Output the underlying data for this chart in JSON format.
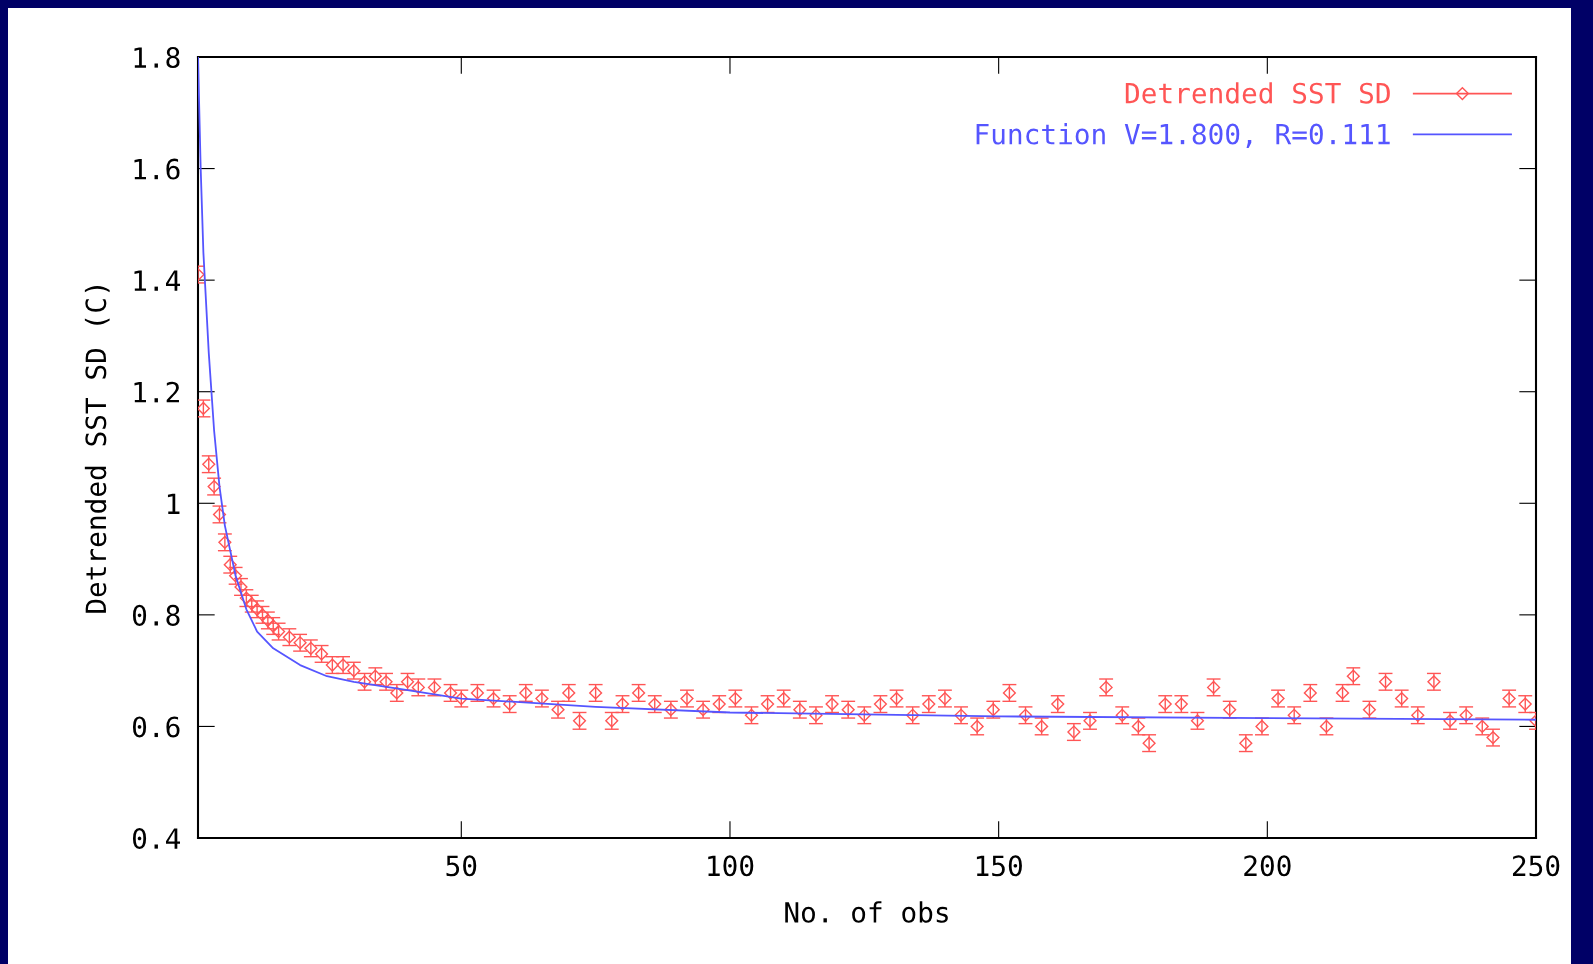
{
  "chart_data": {
    "type": "scatter",
    "xlabel": "No. of obs",
    "ylabel": "Detrended SST SD (C)",
    "xlim": [
      1,
      250
    ],
    "ylim": [
      0.4,
      1.8
    ],
    "xticks": [
      50,
      100,
      150,
      200,
      250
    ],
    "yticks": [
      0.4,
      0.6,
      0.8,
      1,
      1.2,
      1.4,
      1.6,
      1.8
    ],
    "grid": false,
    "legend": "top right",
    "series": [
      {
        "name": "Detrended SST SD",
        "marker": "diamond",
        "color": "#ff5555",
        "x": [
          1,
          2,
          3,
          4,
          5,
          6,
          7,
          8,
          9,
          10,
          11,
          12,
          13,
          14,
          15,
          16,
          18,
          20,
          22,
          24,
          26,
          28,
          30,
          32,
          34,
          36,
          38,
          40,
          42,
          45,
          48,
          50,
          53,
          56,
          59,
          62,
          65,
          68,
          70,
          72,
          75,
          78,
          80,
          83,
          86,
          89,
          92,
          95,
          98,
          101,
          104,
          107,
          110,
          113,
          116,
          119,
          122,
          125,
          128,
          131,
          134,
          137,
          140,
          143,
          146,
          149,
          152,
          155,
          158,
          161,
          164,
          167,
          170,
          173,
          176,
          178,
          181,
          184,
          187,
          190,
          193,
          196,
          199,
          202,
          205,
          208,
          211,
          214,
          216,
          219,
          222,
          225,
          228,
          231,
          234,
          237,
          240,
          242,
          245,
          248,
          250
        ],
        "values": [
          1.41,
          1.17,
          1.07,
          1.03,
          0.98,
          0.93,
          0.89,
          0.87,
          0.85,
          0.83,
          0.82,
          0.81,
          0.8,
          0.79,
          0.78,
          0.77,
          0.76,
          0.75,
          0.74,
          0.73,
          0.71,
          0.71,
          0.7,
          0.68,
          0.69,
          0.68,
          0.66,
          0.68,
          0.67,
          0.67,
          0.66,
          0.65,
          0.66,
          0.65,
          0.64,
          0.66,
          0.65,
          0.63,
          0.66,
          0.61,
          0.66,
          0.61,
          0.64,
          0.66,
          0.64,
          0.63,
          0.65,
          0.63,
          0.64,
          0.65,
          0.62,
          0.64,
          0.65,
          0.63,
          0.62,
          0.64,
          0.63,
          0.62,
          0.64,
          0.65,
          0.62,
          0.64,
          0.65,
          0.62,
          0.6,
          0.63,
          0.66,
          0.62,
          0.6,
          0.64,
          0.59,
          0.61,
          0.67,
          0.62,
          0.6,
          0.57,
          0.64,
          0.64,
          0.61,
          0.67,
          0.63,
          0.57,
          0.6,
          0.65,
          0.62,
          0.66,
          0.6,
          0.66,
          0.69,
          0.63,
          0.68,
          0.65,
          0.62,
          0.68,
          0.61,
          0.62,
          0.6,
          0.58,
          0.65,
          0.64,
          0.61
        ],
        "errors": [
          0.015,
          0.015,
          0.015,
          0.015,
          0.015,
          0.015,
          0.015,
          0.015,
          0.015,
          0.015,
          0.015,
          0.015,
          0.015,
          0.015,
          0.015,
          0.015,
          0.015,
          0.015,
          0.015,
          0.015,
          0.015,
          0.015,
          0.015,
          0.015,
          0.015,
          0.015,
          0.015,
          0.015,
          0.015,
          0.015,
          0.015,
          0.015,
          0.015,
          0.015,
          0.015,
          0.015,
          0.015,
          0.015,
          0.015,
          0.015,
          0.015,
          0.015,
          0.015,
          0.015,
          0.015,
          0.015,
          0.015,
          0.015,
          0.015,
          0.015,
          0.015,
          0.015,
          0.015,
          0.015,
          0.015,
          0.015,
          0.015,
          0.015,
          0.015,
          0.015,
          0.015,
          0.015,
          0.015,
          0.015,
          0.015,
          0.015,
          0.015,
          0.015,
          0.015,
          0.015,
          0.015,
          0.015,
          0.015,
          0.015,
          0.015,
          0.015,
          0.015,
          0.015,
          0.015,
          0.015,
          0.015,
          0.015,
          0.015,
          0.015,
          0.015,
          0.015,
          0.015,
          0.015,
          0.015,
          0.015,
          0.015,
          0.015,
          0.015,
          0.015,
          0.015,
          0.015,
          0.015,
          0.015,
          0.015,
          0.015,
          0.015
        ]
      },
      {
        "name": "Function V=1.800, R=0.111",
        "type": "line",
        "line_style": "solid",
        "color": "#5555ff",
        "x": [
          1,
          1.5,
          2,
          3,
          4,
          5,
          6,
          8,
          10,
          12,
          15,
          20,
          25,
          30,
          40,
          50,
          75,
          100,
          150,
          200,
          250
        ],
        "values": [
          1.8,
          1.6,
          1.45,
          1.27,
          1.13,
          1.03,
          0.96,
          0.87,
          0.81,
          0.77,
          0.74,
          0.71,
          0.69,
          0.68,
          0.665,
          0.65,
          0.635,
          0.625,
          0.618,
          0.615,
          0.612
        ]
      }
    ]
  }
}
